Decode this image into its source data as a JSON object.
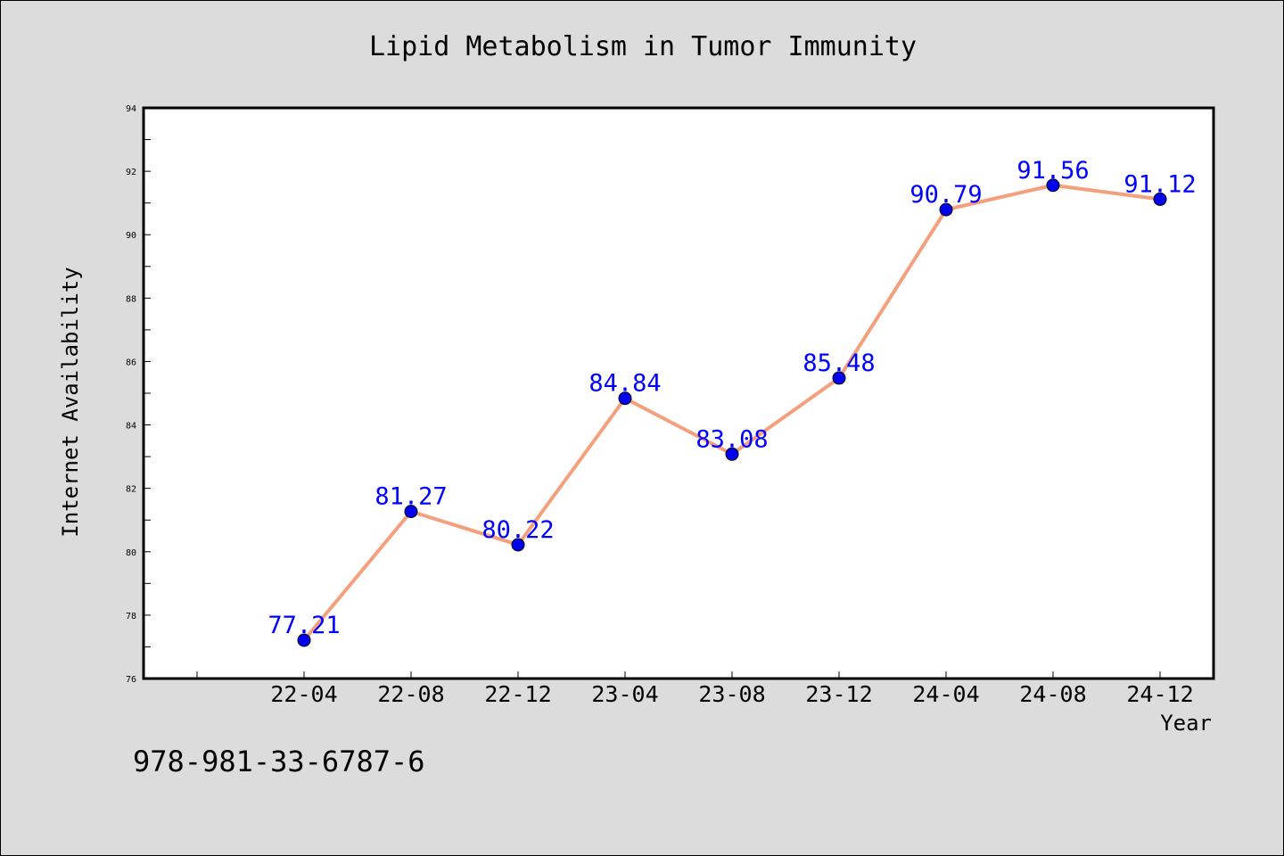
{
  "chart_data": {
    "type": "line",
    "title": "Lipid Metabolism in Tumor Immunity",
    "xlabel": "Year",
    "ylabel": "Internet Availability",
    "categories": [
      "22-04",
      "22-08",
      "22-12",
      "23-04",
      "23-08",
      "23-12",
      "24-04",
      "24-08",
      "24-12"
    ],
    "series": [
      {
        "values": [
          77.21,
          81.27,
          80.22,
          84.84,
          83.08,
          85.48,
          90.79,
          91.56,
          91.12
        ]
      }
    ],
    "data_labels": [
      "77.21",
      "81.27",
      "80.22",
      "84.84",
      "83.08",
      "85.48",
      "90.79",
      "91.56",
      "91.12"
    ],
    "ylim": [
      76,
      94
    ],
    "yticks": [
      "76",
      "78",
      "80",
      "82",
      "84",
      "86",
      "88",
      "90",
      "92",
      "94"
    ],
    "grid": false,
    "line_color": "#f4a07c",
    "marker_color": "#0000ee",
    "label_color": "#0000ff"
  },
  "footer": {
    "code": "978-981-33-6787-6"
  }
}
